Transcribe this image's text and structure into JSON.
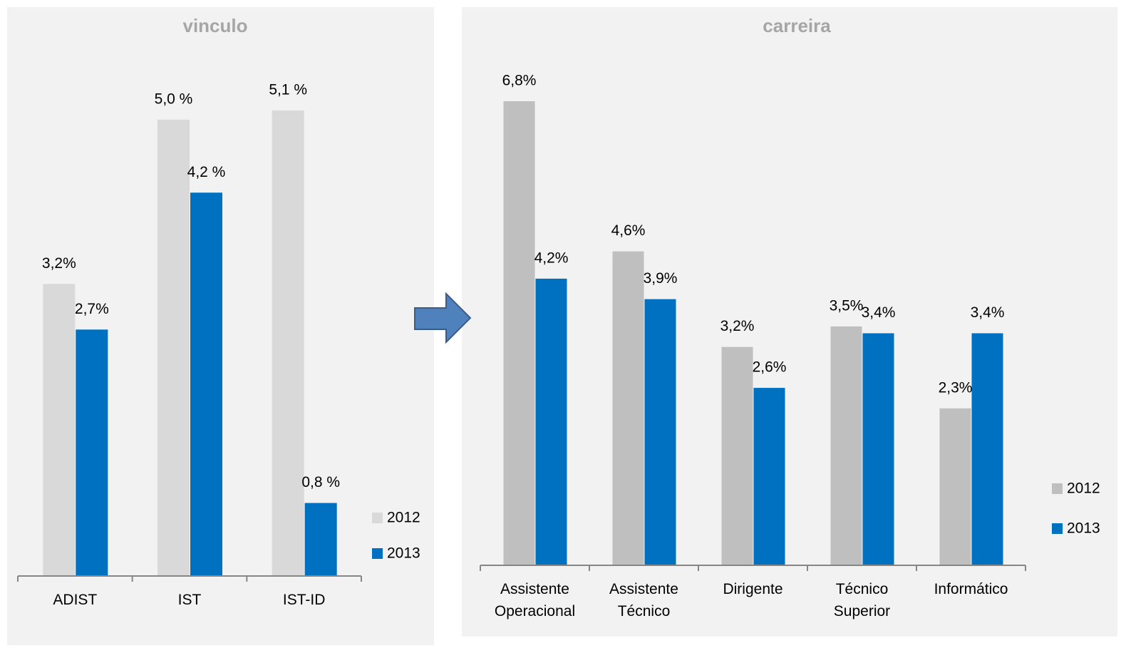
{
  "chart_data": [
    {
      "type": "bar",
      "title": "vinculo",
      "categories": [
        "ADIST",
        "IST",
        "IST-ID"
      ],
      "series": [
        {
          "name": "2012",
          "color": "#d9d9d9",
          "values": [
            3.2,
            5.0,
            5.1
          ],
          "value_labels": [
            "3,2%",
            "5,0 %",
            "5,1 %"
          ]
        },
        {
          "name": "2013",
          "color": "#0070c0",
          "values": [
            2.7,
            4.2,
            0.8
          ],
          "value_labels": [
            "2,7%",
            "4,2 %",
            "0,8 %"
          ]
        }
      ]
    },
    {
      "type": "bar",
      "title": "carreira",
      "categories": [
        "Assistente Operacional",
        "Assistente Técnico",
        "Dirigente",
        "Técnico Superior",
        "Informático"
      ],
      "series": [
        {
          "name": "2012",
          "color": "#bfbfbf",
          "values": [
            6.8,
            4.6,
            3.2,
            3.5,
            2.3
          ],
          "value_labels": [
            "6,8%",
            "4,6%",
            "3,2%",
            "3,5%",
            "2,3%"
          ]
        },
        {
          "name": "2013",
          "color": "#0070c0",
          "values": [
            4.2,
            3.9,
            2.6,
            3.4,
            3.4
          ],
          "value_labels": [
            "4,2%",
            "3,9%",
            "2,6%",
            "3,4%",
            "3,4%"
          ]
        }
      ]
    }
  ]
}
